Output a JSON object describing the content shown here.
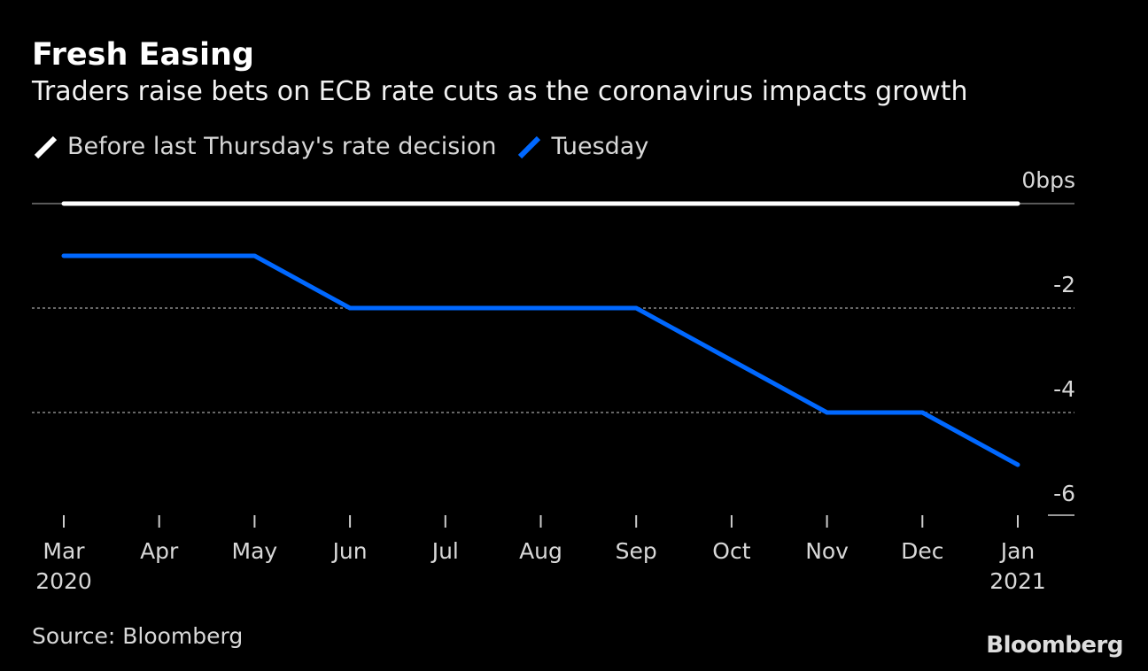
{
  "title": "Fresh Easing",
  "subtitle": "Traders raise bets on ECB rate cuts as the coronavirus impacts growth",
  "source": "Source: Bloomberg",
  "logo": "Bloomberg",
  "chart_data": {
    "type": "line",
    "categories": [
      "Mar",
      "Apr",
      "May",
      "Jun",
      "Jul",
      "Aug",
      "Sep",
      "Oct",
      "Nov",
      "Dec",
      "Jan"
    ],
    "category_sublabels": {
      "0": "2020",
      "10": "2021"
    },
    "series": [
      {
        "name": "Before last Thursday's rate decision",
        "color": "#ffffff",
        "values": [
          0,
          0,
          0,
          0,
          0,
          0,
          0,
          0,
          0,
          0,
          0
        ]
      },
      {
        "name": "Tuesday",
        "color": "#0068ff",
        "values": [
          -1,
          -1,
          -1,
          -2,
          -2,
          -2,
          -2,
          -3,
          -4,
          -4,
          -5
        ]
      }
    ],
    "yticks": [
      0,
      -2,
      -4,
      -6
    ],
    "ytick_labels": [
      "0bps",
      "-2",
      "-4",
      "-6"
    ],
    "ylim": [
      -6,
      0
    ],
    "grid": true,
    "legend": "top-left"
  }
}
